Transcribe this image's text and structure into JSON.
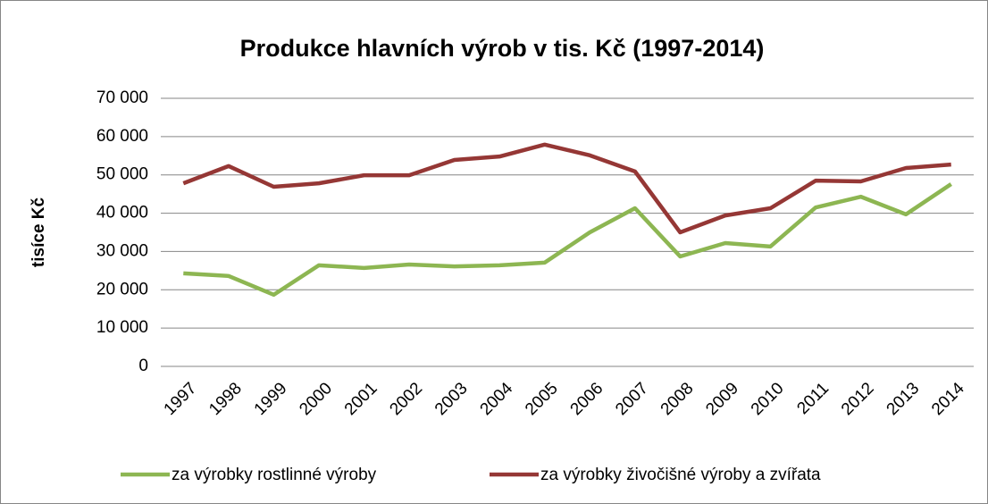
{
  "chart_data": {
    "type": "line",
    "title": "Produkce hlavních výrob v tis. Kč (1997-2014)",
    "y_label": "tisíce Kč",
    "categories": [
      "1997",
      "1998",
      "1999",
      "2000",
      "2001",
      "2002",
      "2003",
      "2004",
      "2005",
      "2006",
      "2007",
      "2008",
      "2009",
      "2010",
      "2011",
      "2012",
      "2013",
      "2014"
    ],
    "series": [
      {
        "name": "za výrobky rostlinné výroby",
        "color": "#8db652",
        "values": [
          24300,
          23600,
          18700,
          26400,
          25700,
          26600,
          26100,
          26400,
          27100,
          35000,
          41300,
          28700,
          32200,
          31300,
          41500,
          44300,
          39700,
          47600
        ]
      },
      {
        "name": "za výrobky živočišné výroby a zvířata",
        "color": "#953735",
        "values": [
          47800,
          52300,
          46900,
          47800,
          49900,
          49900,
          53900,
          54800,
          57900,
          55100,
          50900,
          35000,
          39400,
          41300,
          48500,
          48300,
          51800,
          52700
        ]
      }
    ],
    "ylim": [
      0,
      70000
    ],
    "yticks": [
      0,
      {
        "value": 10000,
        "label": "10 000"
      },
      {
        "value": 20000,
        "label": "20 000"
      },
      {
        "value": 30000,
        "label": "30 000"
      },
      {
        "value": 40000,
        "label": "40 000"
      },
      {
        "value": 50000,
        "label": "50 000"
      },
      {
        "value": 60000,
        "label": "60 000"
      },
      {
        "value": 70000,
        "label": "70 000"
      }
    ],
    "grid": true,
    "legend": "bottom"
  }
}
